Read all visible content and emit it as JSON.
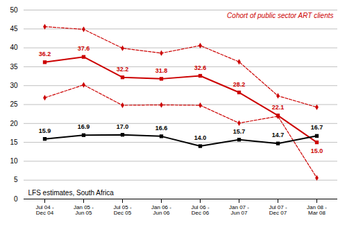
{
  "chart_data": {
    "type": "line",
    "categories": [
      "Jul 04 - Dec 04",
      "Jan 05 - Jun 05",
      "Jul 05 - Dec 05",
      "Jan 06 - Jun 06",
      "Jul 06 - Dec 06",
      "Jan 07 - Jun 07",
      "Jul 07 - Dec 07",
      "Jan 08 - Mar 08"
    ],
    "series": [
      {
        "color": "#cc0000",
        "line_style": "dashed",
        "marker": "diamond",
        "values": [
          45.6,
          44.9,
          39.9,
          38.6,
          40.6,
          36.3,
          27.3,
          24.3
        ]
      },
      {
        "color": "#cc0000",
        "line_style": "dashed",
        "marker": "diamond",
        "values": [
          26.8,
          30.2,
          24.8,
          24.9,
          24.8,
          20.1,
          21.9,
          5.6
        ]
      },
      {
        "color": "#cc0000",
        "line_style": "solid",
        "marker": "square",
        "values": [
          36.2,
          37.6,
          32.2,
          31.8,
          32.6,
          28.2,
          22.1,
          15.0
        ],
        "value_labels": [
          "36.2",
          "37.6",
          "32.2",
          "31.8",
          "32.6",
          "28.2",
          "22.1",
          "15.0"
        ]
      },
      {
        "color": "#000000",
        "line_style": "solid",
        "marker": "square",
        "values": [
          15.9,
          16.9,
          17.0,
          16.6,
          14.0,
          15.7,
          14.7,
          16.7
        ],
        "value_labels": [
          "15.9",
          "16.9",
          "17.0",
          "16.6",
          "14.0",
          "15.7",
          "14.7",
          "16.7"
        ]
      }
    ],
    "data_labels": true,
    "ylim": [
      0,
      50
    ],
    "yticks": [
      0,
      5,
      10,
      15,
      20,
      25,
      30,
      35,
      40,
      45,
      50
    ],
    "grid": true,
    "annotations": [
      {
        "text": "Cohort of public sector ART clients",
        "color": "#cc0000"
      },
      {
        "text": "LFS estimates, South Africa",
        "color": "#000000"
      }
    ]
  }
}
